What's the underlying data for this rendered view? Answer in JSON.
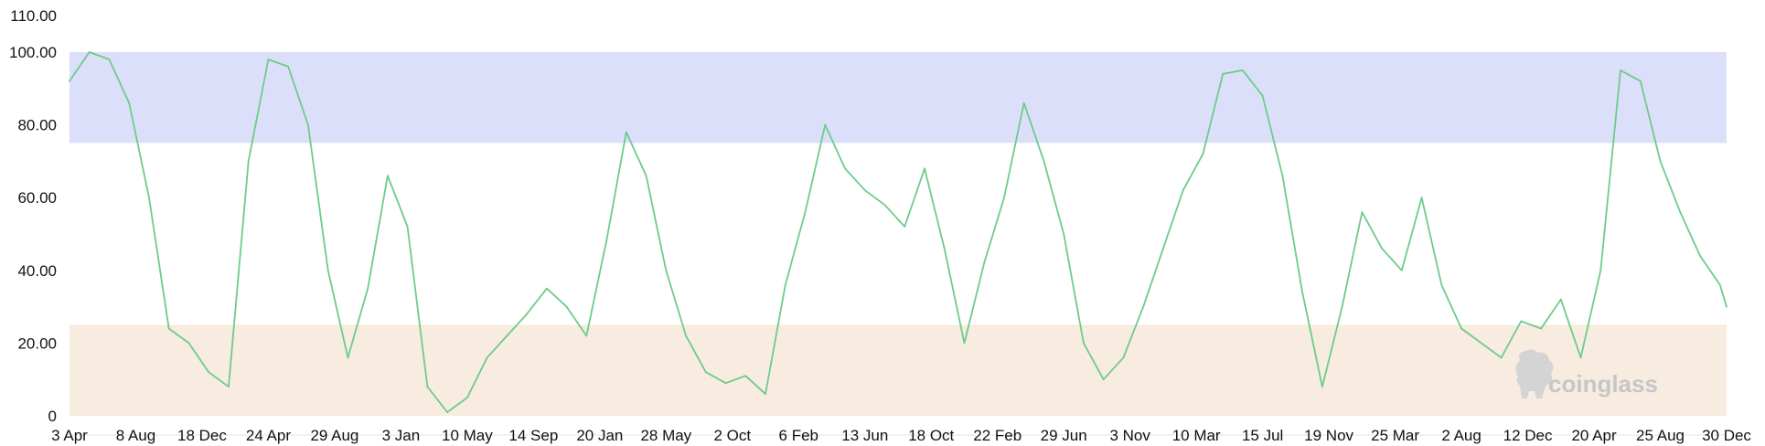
{
  "chart_data": {
    "type": "line",
    "title": "",
    "xlabel": "",
    "ylabel": "",
    "ylim": [
      0,
      110
    ],
    "y_ticks": [
      "0",
      "20.00",
      "40.00",
      "60.00",
      "80.00",
      "100.00",
      "110.00"
    ],
    "x_ticks": [
      "3 Apr",
      "8 Aug",
      "18 Dec",
      "24 Apr",
      "29 Aug",
      "3 Jan",
      "10 May",
      "14 Sep",
      "20 Jan",
      "28 May",
      "2 Oct",
      "6 Feb",
      "13 Jun",
      "18 Oct",
      "22 Feb",
      "29 Jun",
      "3 Nov",
      "10 Mar",
      "15 Jul",
      "19 Nov",
      "25 Mar",
      "2 Aug",
      "12 Dec",
      "20 Apr",
      "25 Aug",
      "30 Dec"
    ],
    "bands": [
      {
        "from": 75,
        "to": 100,
        "color": "#dcdff9"
      },
      {
        "from": 0,
        "to": 25,
        "color": "#f8ebe0"
      }
    ],
    "series": [
      {
        "color": "#6dcc8a",
        "x": [
          0,
          0.3,
          0.6,
          0.9,
          1.2,
          1.5,
          1.8,
          2.1,
          2.4,
          2.7,
          3.0,
          3.3,
          3.6,
          3.9,
          4.2,
          4.5,
          4.8,
          5.1,
          5.4,
          5.7,
          6.0,
          6.3,
          6.6,
          6.9,
          7.2,
          7.5,
          7.8,
          8.1,
          8.4,
          8.7,
          9.0,
          9.3,
          9.6,
          9.9,
          10.2,
          10.5,
          10.8,
          11.1,
          11.4,
          11.7,
          12.0,
          12.3,
          12.6,
          12.9,
          13.2,
          13.5,
          13.8,
          14.1,
          14.4,
          14.7,
          15.0,
          15.3,
          15.6,
          15.9,
          16.2,
          16.5,
          16.8,
          17.1,
          17.4,
          17.7,
          18.0,
          18.3,
          18.6,
          18.9,
          19.2,
          19.5,
          19.8,
          20.1,
          20.4,
          20.7,
          21.0,
          21.3,
          21.6,
          21.9,
          22.2,
          22.5,
          22.8,
          23.1,
          23.4,
          23.7,
          24.0,
          24.3,
          24.6,
          24.9,
          25.0
        ],
        "y": [
          92,
          100,
          98,
          86,
          60,
          24,
          20,
          12,
          8,
          70,
          98,
          96,
          80,
          40,
          16,
          35,
          66,
          52,
          8,
          1,
          5,
          16,
          22,
          28,
          35,
          30,
          22,
          48,
          78,
          66,
          40,
          22,
          12,
          9,
          11,
          6,
          36,
          56,
          80,
          68,
          62,
          58,
          52,
          68,
          46,
          20,
          42,
          60,
          86,
          70,
          50,
          20,
          10,
          16,
          30,
          46,
          62,
          72,
          94,
          95,
          88,
          66,
          34,
          8,
          30,
          56,
          46,
          40,
          60,
          36,
          24,
          20,
          16,
          26,
          24,
          32,
          16,
          40,
          95,
          92,
          70,
          56,
          44,
          36,
          30
        ]
      }
    ]
  },
  "watermark": {
    "text": "coinglass",
    "icon": "coinglass-logo-icon"
  }
}
